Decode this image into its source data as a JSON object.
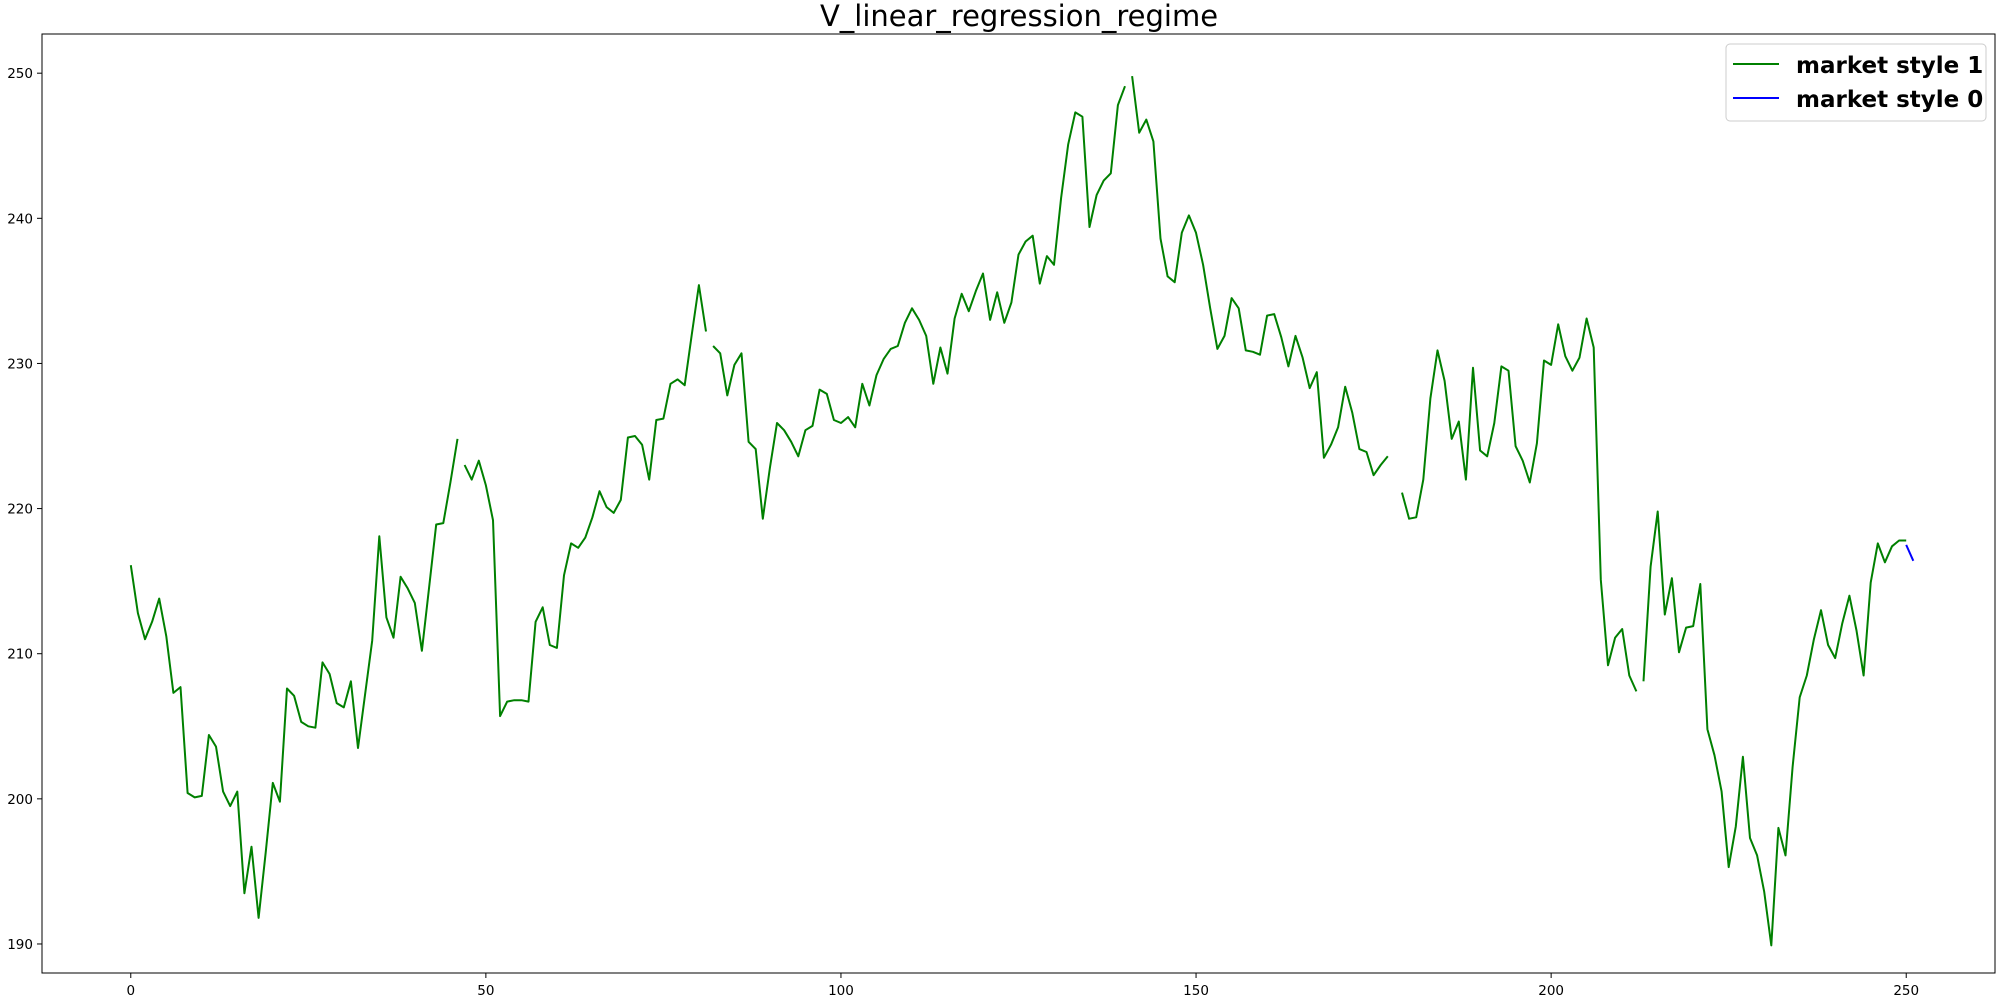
{
  "chart_data": {
    "type": "line",
    "title": "V_linear_regression_regime",
    "xlabel": "",
    "ylabel": "",
    "xlim": [
      -12.5,
      262.5
    ],
    "ylim": [
      188,
      252.7
    ],
    "xticks": [
      0,
      50,
      100,
      150,
      200,
      250
    ],
    "yticks": [
      190,
      200,
      210,
      220,
      230,
      240,
      250
    ],
    "grid": false,
    "legend": {
      "position": "top-right",
      "entries": [
        {
          "label": "market style 1",
          "color": "#008000"
        },
        {
          "label": "market style 0",
          "color": "#0000ff"
        }
      ]
    },
    "series": [
      {
        "name": "market style 1",
        "color": "#008000",
        "x_start": 0,
        "values": [
          216.1,
          212.8,
          211.0,
          212.2,
          213.8,
          211.2,
          207.3,
          207.7,
          200.4,
          200.1,
          200.2,
          204.4,
          203.6,
          200.5,
          199.5,
          200.5,
          193.5,
          196.7,
          191.8,
          196.3,
          201.1,
          199.8,
          207.6,
          207.1,
          205.3,
          205.0,
          204.9,
          209.4,
          208.6,
          206.6,
          206.3,
          208.1,
          203.5,
          207.2,
          210.9,
          218.1,
          212.5,
          211.1,
          215.3,
          214.5,
          213.5,
          210.2,
          214.5,
          218.9,
          219.0,
          221.8,
          224.8
        ]
      },
      {
        "name": "market style 1",
        "color": "#008000",
        "x_start": 47,
        "values": [
          223.0,
          222.0,
          223.3,
          221.6,
          219.2,
          205.7,
          206.7,
          206.8,
          206.8,
          206.7,
          212.2,
          213.2,
          210.6,
          210.4,
          215.4,
          217.6,
          217.3,
          218.0,
          219.4,
          221.2,
          220.1,
          219.7,
          220.6,
          224.9,
          225.0,
          224.4,
          222.0,
          226.1,
          226.2,
          228.6,
          228.9,
          228.5,
          232.0,
          235.4,
          232.2
        ]
      },
      {
        "name": "market style 1",
        "color": "#008000",
        "x_start": 82,
        "values": [
          231.2,
          230.7,
          227.8,
          229.9,
          230.7,
          224.6,
          224.1,
          219.3,
          222.8,
          225.9,
          225.4,
          224.6,
          223.6,
          225.4,
          225.7,
          228.2,
          227.9,
          226.1,
          225.9,
          226.3,
          225.6,
          228.6,
          227.1,
          229.2,
          230.3,
          231.0,
          231.2,
          232.8,
          233.8,
          233.0,
          231.9,
          228.6,
          231.1,
          229.3,
          233.1,
          234.8,
          233.6,
          235.0,
          236.2,
          233.0,
          234.9,
          232.8,
          234.2,
          237.5,
          238.4,
          238.8,
          235.5,
          237.4,
          236.8,
          241.4,
          245.1,
          247.3,
          247.0,
          239.4,
          241.6,
          242.6,
          243.1,
          247.8,
          249.1
        ]
      },
      {
        "name": "market style 1",
        "color": "#008000",
        "x_start": 141,
        "values": [
          249.8,
          245.9,
          246.8,
          245.3,
          238.6,
          236.0,
          235.6,
          239.0,
          240.2,
          239.0,
          236.8,
          233.8,
          231.0,
          231.9,
          234.5,
          233.8,
          230.9,
          230.8,
          230.6,
          233.3,
          233.4,
          231.8,
          229.8,
          231.9,
          230.4,
          228.3,
          229.4,
          223.5,
          224.4,
          225.6,
          228.4,
          226.6,
          224.1,
          223.9,
          222.3,
          223.0,
          223.6
        ]
      },
      {
        "name": "market style 1",
        "color": "#008000",
        "x_start": 179,
        "values": [
          221.1,
          219.3,
          219.4,
          222.0,
          227.6,
          230.9,
          228.8,
          224.8,
          226.0,
          222.0,
          229.7,
          224.0,
          223.6,
          225.9,
          229.8,
          229.5,
          224.3,
          223.3,
          221.8,
          224.5,
          230.2,
          229.9,
          232.7,
          230.5,
          229.5,
          230.4,
          233.1,
          231.1,
          215.1,
          209.2,
          211.1,
          211.7,
          208.5,
          207.4
        ]
      },
      {
        "name": "market style 1",
        "color": "#008000",
        "x_start": 213,
        "values": [
          208.1,
          216.0,
          219.8,
          212.7,
          215.2,
          210.1,
          211.8,
          211.9,
          214.8,
          204.8,
          203.0,
          200.5,
          195.3,
          198.1,
          202.9,
          197.3,
          196.1,
          193.6,
          189.9,
          198.0,
          196.1,
          202.2,
          207.0,
          208.5,
          211.0,
          213.0,
          210.6,
          209.7,
          212.1,
          214.0,
          211.6,
          208.5,
          214.9,
          217.6,
          216.3,
          217.4,
          217.8,
          217.8
        ]
      },
      {
        "name": "market style 0",
        "color": "#0000ff",
        "x_start": 250,
        "values": [
          217.5,
          216.4
        ]
      }
    ]
  }
}
